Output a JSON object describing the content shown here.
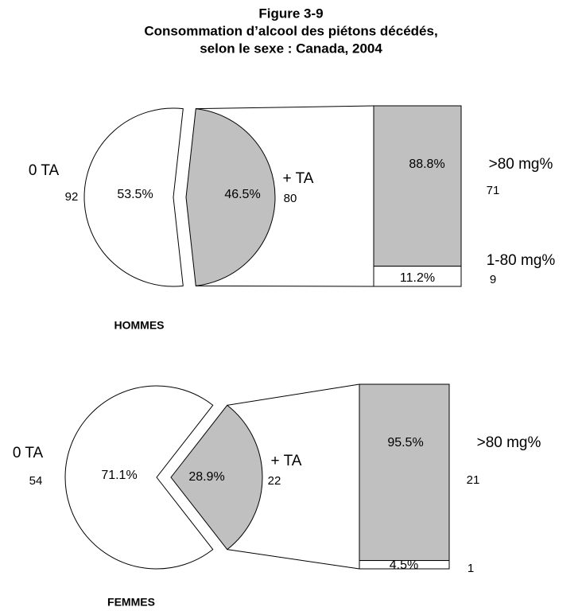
{
  "figure": {
    "title": "Figure 3-9",
    "subtitle": [
      "Consommation d’alcool des piétons décédés,",
      "selon le sexe : Canada, 2004"
    ]
  },
  "chart_data": [
    {
      "type": "pie-bar",
      "label": "HOMMES",
      "categories": [
        "0 TA",
        "+ TA"
      ],
      "values": [
        53.5,
        46.5
      ],
      "value_labels": [
        "53.5%",
        "46.5%"
      ],
      "counts": [
        92,
        80
      ],
      "colors": [
        "#ffffff",
        "#c0c0c0"
      ],
      "bar": {
        "categories": [
          ">80 mg%",
          "1-80 mg%"
        ],
        "values": [
          88.8,
          11.2
        ],
        "value_labels": [
          "88.8%",
          "11.2%"
        ],
        "counts": [
          71,
          9
        ],
        "colors": [
          "#c0c0c0",
          "#ffffff"
        ]
      }
    },
    {
      "type": "pie-bar",
      "label": "FEMMES",
      "categories": [
        "0 TA",
        "+ TA"
      ],
      "values": [
        71.1,
        28.9
      ],
      "value_labels": [
        "71.1%",
        "28.9%"
      ],
      "counts": [
        54,
        22
      ],
      "colors": [
        "#ffffff",
        "#c0c0c0"
      ],
      "bar": {
        "categories": [
          ">80 mg%",
          null
        ],
        "values": [
          95.5,
          4.5
        ],
        "value_labels": [
          "95.5%",
          "4.5%"
        ],
        "counts": [
          21,
          1
        ],
        "colors": [
          "#c0c0c0",
          "#ffffff"
        ]
      }
    }
  ]
}
